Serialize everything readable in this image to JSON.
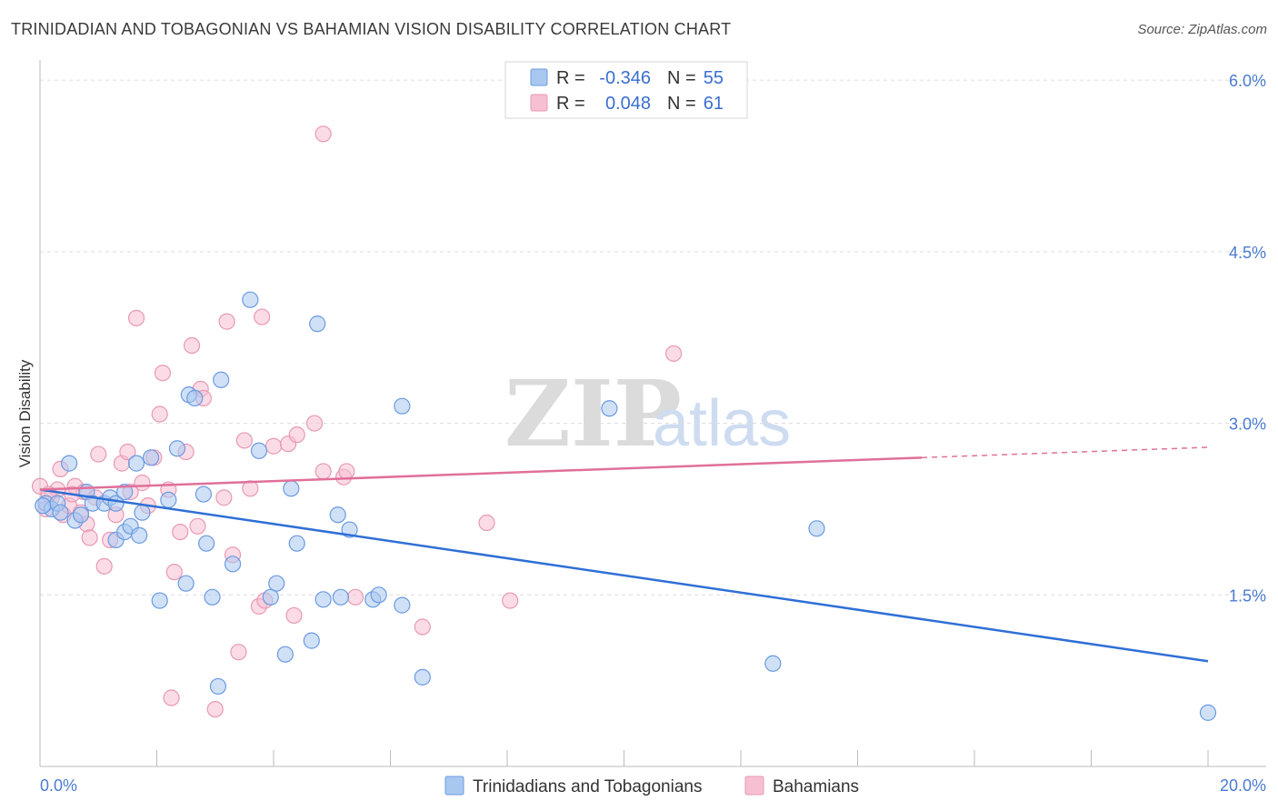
{
  "title": "TRINIDADIAN AND TOBAGONIAN VS BAHAMIAN VISION DISABILITY CORRELATION CHART",
  "source": "Source: ZipAtlas.com",
  "watermark": {
    "part1": "ZIP",
    "part2": "atlas"
  },
  "colors": {
    "blue_fill": "#a9c8f0",
    "blue_stroke": "#6b9ae0",
    "blue_line": "#2f6fd6",
    "pink_fill": "#f7c0d2",
    "pink_stroke": "#e899b5",
    "pink_line": "#e07099",
    "tick_text": "#4a7bd0",
    "grid": "#dcdcdc"
  },
  "legend": {
    "rows": [
      {
        "r_label": "R =",
        "r_value": "-0.346",
        "n_label": "N =",
        "n_value": "55",
        "series": "blue"
      },
      {
        "r_label": "R =",
        "r_value": "0.048",
        "n_label": "N =",
        "n_value": "61",
        "series": "pink"
      }
    ]
  },
  "chart_data": {
    "type": "scatter",
    "title": "TRINIDADIAN AND TOBAGONIAN VS BAHAMIAN VISION DISABILITY CORRELATION CHART",
    "xlabel": "",
    "ylabel": "Vision Disability",
    "xlim": [
      0,
      20
    ],
    "ylim": [
      0,
      6.2
    ],
    "x_tick_labels": [
      "0.0%",
      "20.0%"
    ],
    "y_ticks": [
      1.5,
      3.0,
      4.5,
      6.0
    ],
    "y_tick_labels": [
      "1.5%",
      "3.0%",
      "4.5%",
      "6.0%"
    ],
    "grid": true,
    "legend_position": "top-center",
    "series": [
      {
        "name": "Trinidadians and Tobagonians",
        "color": "#a9c8f0",
        "trend": {
          "x": [
            0.0,
            20.0
          ],
          "y": [
            2.42,
            0.92
          ],
          "dashed_from": null
        },
        "points": [
          [
            0.1,
            2.3
          ],
          [
            0.2,
            2.25
          ],
          [
            0.3,
            2.3
          ],
          [
            0.35,
            2.22
          ],
          [
            0.5,
            2.65
          ],
          [
            0.6,
            2.15
          ],
          [
            0.7,
            2.2
          ],
          [
            0.8,
            2.4
          ],
          [
            0.9,
            2.3
          ],
          [
            1.1,
            2.3
          ],
          [
            1.2,
            2.35
          ],
          [
            1.3,
            2.3
          ],
          [
            1.3,
            1.98
          ],
          [
            1.45,
            2.4
          ],
          [
            1.45,
            2.05
          ],
          [
            1.55,
            2.1
          ],
          [
            1.65,
            2.65
          ],
          [
            1.7,
            2.02
          ],
          [
            1.75,
            2.22
          ],
          [
            1.9,
            2.7
          ],
          [
            2.05,
            1.45
          ],
          [
            2.2,
            2.33
          ],
          [
            2.35,
            2.78
          ],
          [
            2.5,
            1.6
          ],
          [
            2.55,
            3.25
          ],
          [
            2.65,
            3.22
          ],
          [
            2.8,
            2.38
          ],
          [
            2.85,
            1.95
          ],
          [
            2.95,
            1.48
          ],
          [
            3.05,
            0.7
          ],
          [
            3.1,
            3.38
          ],
          [
            3.3,
            1.77
          ],
          [
            3.6,
            4.08
          ],
          [
            3.75,
            2.76
          ],
          [
            3.95,
            1.48
          ],
          [
            4.05,
            1.6
          ],
          [
            4.2,
            0.98
          ],
          [
            4.3,
            2.43
          ],
          [
            4.4,
            1.95
          ],
          [
            4.65,
            1.1
          ],
          [
            4.75,
            3.87
          ],
          [
            4.85,
            1.46
          ],
          [
            5.1,
            2.2
          ],
          [
            5.15,
            1.48
          ],
          [
            5.3,
            2.07
          ],
          [
            5.7,
            1.46
          ],
          [
            5.8,
            1.5
          ],
          [
            6.2,
            1.41
          ],
          [
            6.2,
            3.15
          ],
          [
            6.55,
            0.78
          ],
          [
            9.75,
            3.13
          ],
          [
            12.55,
            0.9
          ],
          [
            13.3,
            2.08
          ],
          [
            20.0,
            0.47
          ],
          [
            0.05,
            2.28
          ]
        ]
      },
      {
        "name": "Bahamians",
        "color": "#f7c0d2",
        "trend": {
          "x": [
            0.0,
            15.1,
            20.0
          ],
          "y": [
            2.42,
            2.7,
            2.79
          ],
          "dashed_from": 15.1
        },
        "points": [
          [
            0.0,
            2.45
          ],
          [
            0.1,
            2.25
          ],
          [
            0.2,
            2.35
          ],
          [
            0.3,
            2.42
          ],
          [
            0.35,
            2.6
          ],
          [
            0.4,
            2.2
          ],
          [
            0.5,
            2.28
          ],
          [
            0.6,
            2.45
          ],
          [
            0.7,
            2.22
          ],
          [
            0.75,
            2.4
          ],
          [
            0.8,
            2.12
          ],
          [
            0.85,
            2.0
          ],
          [
            0.95,
            2.35
          ],
          [
            1.0,
            2.73
          ],
          [
            1.1,
            1.75
          ],
          [
            1.2,
            1.98
          ],
          [
            1.3,
            2.2
          ],
          [
            1.4,
            2.65
          ],
          [
            1.5,
            2.75
          ],
          [
            1.55,
            2.4
          ],
          [
            1.65,
            3.92
          ],
          [
            1.75,
            2.48
          ],
          [
            1.85,
            2.28
          ],
          [
            1.95,
            2.7
          ],
          [
            2.05,
            3.08
          ],
          [
            2.1,
            3.44
          ],
          [
            2.2,
            2.42
          ],
          [
            2.25,
            0.6
          ],
          [
            2.3,
            1.7
          ],
          [
            2.4,
            2.05
          ],
          [
            2.5,
            2.75
          ],
          [
            2.6,
            3.68
          ],
          [
            2.7,
            2.1
          ],
          [
            2.75,
            3.3
          ],
          [
            2.8,
            3.22
          ],
          [
            3.0,
            0.5
          ],
          [
            3.15,
            2.35
          ],
          [
            3.2,
            3.89
          ],
          [
            3.3,
            1.85
          ],
          [
            3.4,
            1.0
          ],
          [
            3.5,
            2.85
          ],
          [
            3.6,
            2.43
          ],
          [
            3.75,
            1.4
          ],
          [
            3.8,
            3.93
          ],
          [
            3.85,
            1.45
          ],
          [
            4.0,
            2.8
          ],
          [
            4.25,
            2.82
          ],
          [
            4.35,
            1.32
          ],
          [
            4.4,
            2.9
          ],
          [
            4.7,
            3.0
          ],
          [
            4.85,
            2.58
          ],
          [
            4.85,
            5.53
          ],
          [
            5.2,
            2.53
          ],
          [
            5.25,
            2.58
          ],
          [
            5.4,
            1.48
          ],
          [
            6.55,
            1.22
          ],
          [
            7.65,
            2.13
          ],
          [
            8.05,
            1.45
          ],
          [
            10.85,
            3.61
          ],
          [
            0.15,
            2.38
          ],
          [
            0.55,
            2.38
          ]
        ]
      }
    ]
  }
}
